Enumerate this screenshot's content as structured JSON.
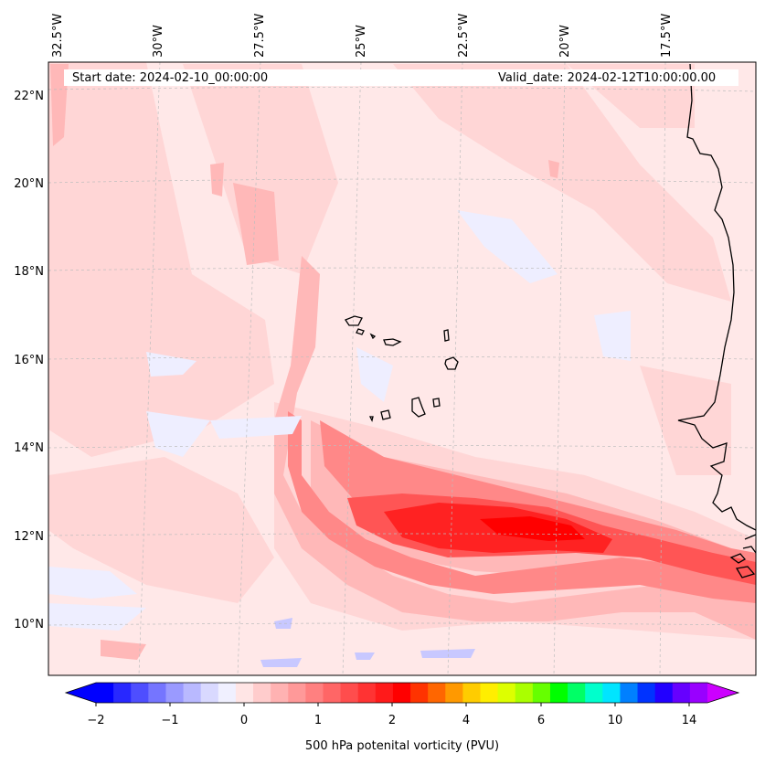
{
  "map": {
    "start_date": "Start date: 2024-02-10_00:00:00",
    "valid_date": "Valid_date: 2024-02-12T10:00:00.00",
    "lon_labels": [
      "32.5°W",
      "30°W",
      "27.5°W",
      "25°W",
      "22.5°W",
      "20°W",
      "17.5°W"
    ],
    "lat_labels": [
      "22°N",
      "20°N",
      "18°N",
      "16°N",
      "14°N",
      "12°N",
      "10°N"
    ],
    "variable": "500 hPa potential vorticity",
    "units": "PVU"
  },
  "colorbar": {
    "label": "500 hPa potenital vorticity (PVU)",
    "tick_labels": [
      "−2",
      "−1",
      "0",
      "1",
      "2",
      "4",
      "6",
      "10",
      "14"
    ],
    "colors": [
      "#0000ff",
      "#2828ff",
      "#4e4eff",
      "#7575ff",
      "#9a9aff",
      "#b9b9ff",
      "#d9d9ff",
      "#f0f0ff",
      "#ffe5e5",
      "#ffcccc",
      "#ffb2b2",
      "#ff9999",
      "#ff8080",
      "#ff6666",
      "#ff4d4d",
      "#ff3333",
      "#ff1a1a",
      "#ff0000",
      "#ff3300",
      "#ff6600",
      "#ff9900",
      "#ffcc00",
      "#ffee00",
      "#ddff00",
      "#aaff00",
      "#66ff00",
      "#00ff00",
      "#00ff66",
      "#00ffcc",
      "#00e5ff",
      "#0080ff",
      "#0033ff",
      "#2200ff",
      "#6600ff",
      "#9900ff"
    ],
    "extend_low_color": "#0000ff",
    "extend_high_color": "#cc00ff"
  },
  "colors": {
    "background": "#ffe8e8",
    "coast": "#000000"
  }
}
